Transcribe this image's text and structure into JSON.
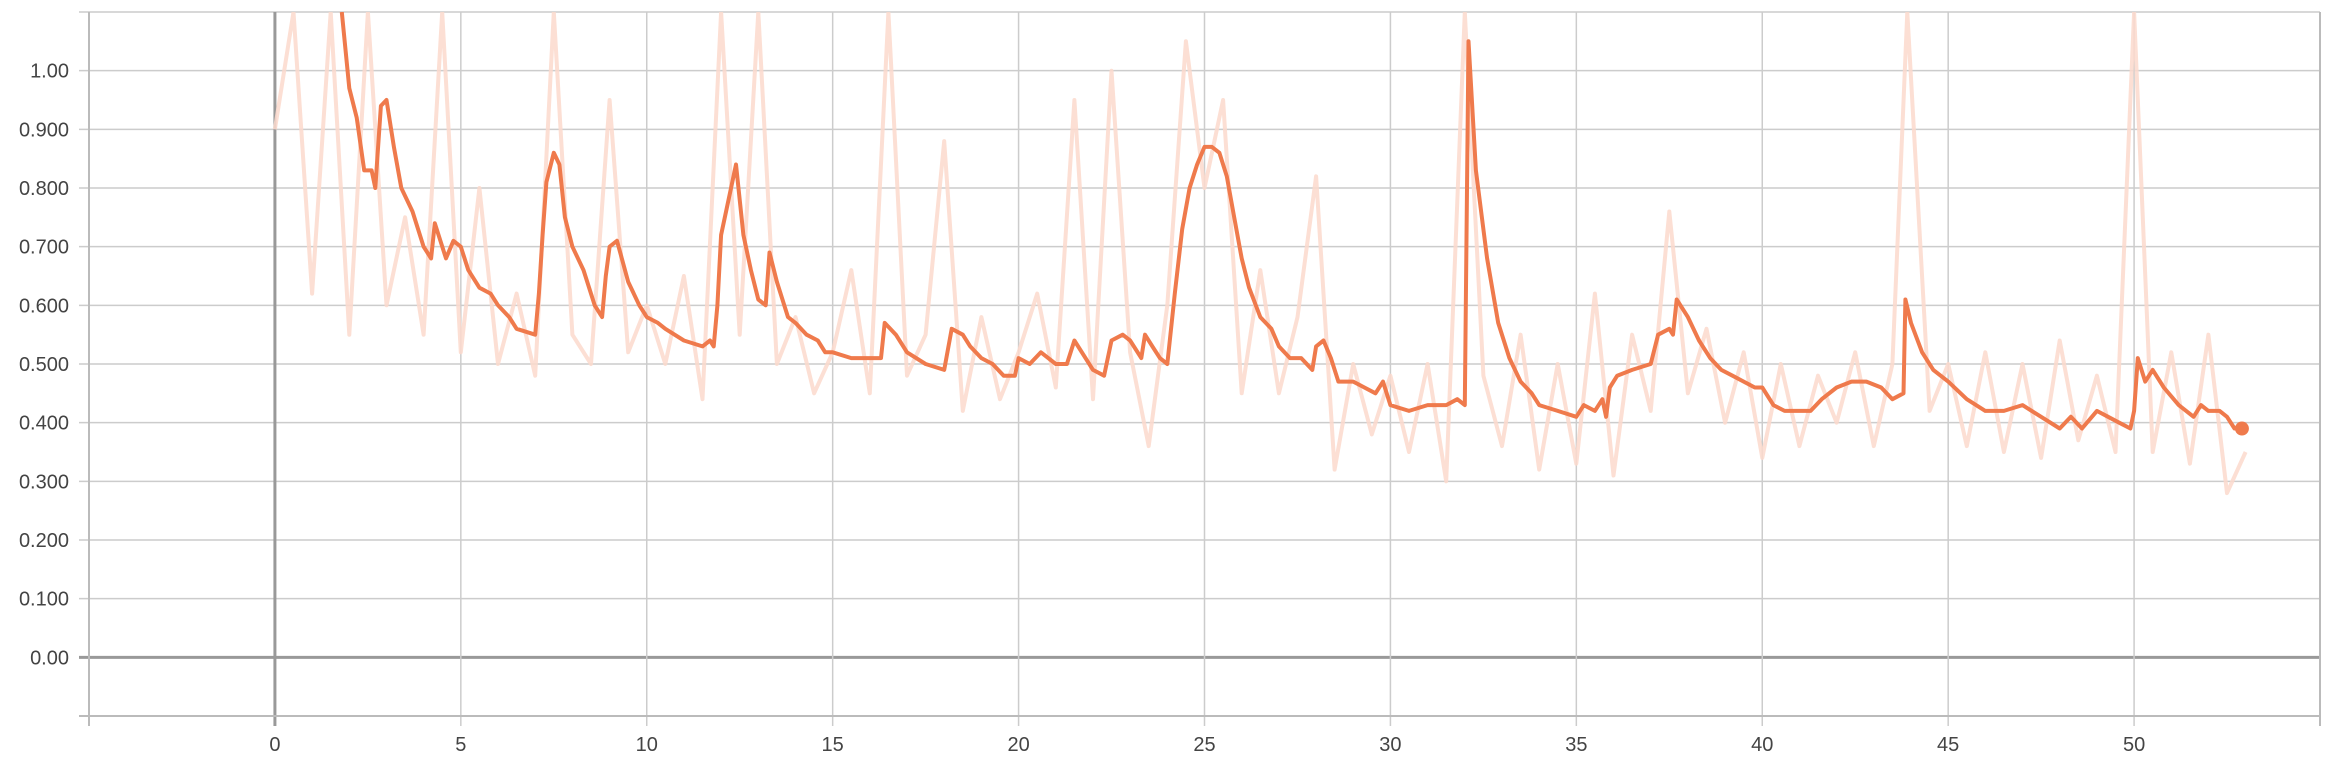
{
  "chart_data": {
    "type": "line",
    "title": "",
    "xlabel": "",
    "ylabel": "",
    "xlim": [
      -5,
      55
    ],
    "ylim": [
      -0.1,
      1.1
    ],
    "grid": true,
    "x_ticks": [
      "0",
      "5",
      "10",
      "15",
      "20",
      "25",
      "30",
      "35",
      "40",
      "45",
      "50"
    ],
    "x_tick_values": [
      0,
      5,
      10,
      15,
      20,
      25,
      30,
      35,
      40,
      45,
      50
    ],
    "y_ticks": [
      "0.00",
      "0.100",
      "0.200",
      "0.300",
      "0.400",
      "0.500",
      "0.600",
      "0.700",
      "0.800",
      "0.900",
      "1.00"
    ],
    "y_tick_values": [
      0,
      0.1,
      0.2,
      0.3,
      0.4,
      0.5,
      0.6,
      0.7,
      0.8,
      0.9,
      1.0
    ],
    "colors": {
      "smoothed": "#ef7a4c",
      "raw": "#fbd9cd",
      "grid": "#cccccc",
      "axis": "#999999"
    },
    "series": [
      {
        "role": "raw",
        "points": [
          [
            0,
            0.9
          ],
          [
            0.5,
            1.1
          ],
          [
            1.0,
            0.62
          ],
          [
            1.5,
            1.1
          ],
          [
            2.0,
            0.55
          ],
          [
            2.5,
            1.1
          ],
          [
            3.0,
            0.6
          ],
          [
            3.5,
            0.75
          ],
          [
            4.0,
            0.55
          ],
          [
            4.5,
            1.1
          ],
          [
            5.0,
            0.52
          ],
          [
            5.5,
            0.8
          ],
          [
            6.0,
            0.5
          ],
          [
            6.5,
            0.62
          ],
          [
            7.0,
            0.48
          ],
          [
            7.5,
            1.1
          ],
          [
            8.0,
            0.55
          ],
          [
            8.5,
            0.5
          ],
          [
            9.0,
            0.95
          ],
          [
            9.5,
            0.52
          ],
          [
            10.0,
            0.6
          ],
          [
            10.5,
            0.5
          ],
          [
            11.0,
            0.65
          ],
          [
            11.5,
            0.44
          ],
          [
            12.0,
            1.1
          ],
          [
            12.5,
            0.55
          ],
          [
            13.0,
            1.1
          ],
          [
            13.5,
            0.5
          ],
          [
            14.0,
            0.58
          ],
          [
            14.5,
            0.45
          ],
          [
            15.0,
            0.52
          ],
          [
            15.5,
            0.66
          ],
          [
            16.0,
            0.45
          ],
          [
            16.5,
            1.1
          ],
          [
            17.0,
            0.48
          ],
          [
            17.5,
            0.55
          ],
          [
            18.0,
            0.88
          ],
          [
            18.5,
            0.42
          ],
          [
            19.0,
            0.58
          ],
          [
            19.5,
            0.44
          ],
          [
            20.0,
            0.52
          ],
          [
            20.5,
            0.62
          ],
          [
            21.0,
            0.46
          ],
          [
            21.5,
            0.95
          ],
          [
            22.0,
            0.44
          ],
          [
            22.5,
            1.0
          ],
          [
            23.0,
            0.52
          ],
          [
            23.5,
            0.36
          ],
          [
            24.0,
            0.6
          ],
          [
            24.5,
            1.05
          ],
          [
            25.0,
            0.8
          ],
          [
            25.5,
            0.95
          ],
          [
            26.0,
            0.45
          ],
          [
            26.5,
            0.66
          ],
          [
            27.0,
            0.45
          ],
          [
            27.5,
            0.58
          ],
          [
            28.0,
            0.82
          ],
          [
            28.5,
            0.32
          ],
          [
            29.0,
            0.5
          ],
          [
            29.5,
            0.38
          ],
          [
            30.0,
            0.48
          ],
          [
            30.5,
            0.35
          ],
          [
            31.0,
            0.5
          ],
          [
            31.5,
            0.3
          ],
          [
            32.0,
            1.1
          ],
          [
            32.5,
            0.48
          ],
          [
            33.0,
            0.36
          ],
          [
            33.5,
            0.55
          ],
          [
            34.0,
            0.32
          ],
          [
            34.5,
            0.5
          ],
          [
            35.0,
            0.33
          ],
          [
            35.5,
            0.62
          ],
          [
            36.0,
            0.31
          ],
          [
            36.5,
            0.55
          ],
          [
            37.0,
            0.42
          ],
          [
            37.5,
            0.76
          ],
          [
            38.0,
            0.45
          ],
          [
            38.5,
            0.56
          ],
          [
            39.0,
            0.4
          ],
          [
            39.5,
            0.52
          ],
          [
            40.0,
            0.34
          ],
          [
            40.5,
            0.5
          ],
          [
            41.0,
            0.36
          ],
          [
            41.5,
            0.48
          ],
          [
            42.0,
            0.4
          ],
          [
            42.5,
            0.52
          ],
          [
            43.0,
            0.36
          ],
          [
            43.5,
            0.5
          ],
          [
            43.9,
            1.1
          ],
          [
            44.5,
            0.42
          ],
          [
            45.0,
            0.5
          ],
          [
            45.5,
            0.36
          ],
          [
            46.0,
            0.52
          ],
          [
            46.5,
            0.35
          ],
          [
            47.0,
            0.5
          ],
          [
            47.5,
            0.34
          ],
          [
            48.0,
            0.54
          ],
          [
            48.5,
            0.37
          ],
          [
            49.0,
            0.48
          ],
          [
            49.5,
            0.35
          ],
          [
            50.0,
            1.1
          ],
          [
            50.5,
            0.35
          ],
          [
            51.0,
            0.52
          ],
          [
            51.5,
            0.33
          ],
          [
            52.0,
            0.55
          ],
          [
            52.5,
            0.28
          ],
          [
            53.0,
            0.35
          ]
        ]
      },
      {
        "role": "smoothed",
        "points": [
          [
            1.8,
            1.1
          ],
          [
            2.0,
            0.97
          ],
          [
            2.2,
            0.92
          ],
          [
            2.4,
            0.83
          ],
          [
            2.6,
            0.83
          ],
          [
            2.7,
            0.8
          ],
          [
            2.85,
            0.94
          ],
          [
            3.0,
            0.95
          ],
          [
            3.2,
            0.87
          ],
          [
            3.4,
            0.8
          ],
          [
            3.7,
            0.76
          ],
          [
            4.0,
            0.7
          ],
          [
            4.2,
            0.68
          ],
          [
            4.3,
            0.74
          ],
          [
            4.6,
            0.68
          ],
          [
            4.8,
            0.71
          ],
          [
            5.0,
            0.7
          ],
          [
            5.2,
            0.66
          ],
          [
            5.5,
            0.63
          ],
          [
            5.8,
            0.62
          ],
          [
            6.0,
            0.6
          ],
          [
            6.3,
            0.58
          ],
          [
            6.5,
            0.56
          ],
          [
            7.0,
            0.55
          ],
          [
            7.1,
            0.62
          ],
          [
            7.2,
            0.72
          ],
          [
            7.3,
            0.81
          ],
          [
            7.5,
            0.86
          ],
          [
            7.65,
            0.84
          ],
          [
            7.8,
            0.75
          ],
          [
            8.0,
            0.7
          ],
          [
            8.3,
            0.66
          ],
          [
            8.6,
            0.6
          ],
          [
            8.8,
            0.58
          ],
          [
            8.9,
            0.65
          ],
          [
            9.0,
            0.7
          ],
          [
            9.2,
            0.71
          ],
          [
            9.5,
            0.64
          ],
          [
            9.8,
            0.6
          ],
          [
            10.0,
            0.58
          ],
          [
            10.3,
            0.57
          ],
          [
            10.5,
            0.56
          ],
          [
            11.0,
            0.54
          ],
          [
            11.5,
            0.53
          ],
          [
            11.7,
            0.54
          ],
          [
            11.8,
            0.53
          ],
          [
            11.9,
            0.6
          ],
          [
            12.0,
            0.72
          ],
          [
            12.3,
            0.81
          ],
          [
            12.4,
            0.84
          ],
          [
            12.6,
            0.72
          ],
          [
            12.8,
            0.66
          ],
          [
            13.0,
            0.61
          ],
          [
            13.2,
            0.6
          ],
          [
            13.3,
            0.69
          ],
          [
            13.5,
            0.64
          ],
          [
            13.8,
            0.58
          ],
          [
            14.0,
            0.57
          ],
          [
            14.3,
            0.55
          ],
          [
            14.6,
            0.54
          ],
          [
            14.8,
            0.52
          ],
          [
            15.0,
            0.52
          ],
          [
            15.5,
            0.51
          ],
          [
            16.0,
            0.51
          ],
          [
            16.3,
            0.51
          ],
          [
            16.4,
            0.57
          ],
          [
            16.7,
            0.55
          ],
          [
            17.0,
            0.52
          ],
          [
            17.5,
            0.5
          ],
          [
            18.0,
            0.49
          ],
          [
            18.2,
            0.56
          ],
          [
            18.5,
            0.55
          ],
          [
            18.7,
            0.53
          ],
          [
            19.0,
            0.51
          ],
          [
            19.3,
            0.5
          ],
          [
            19.6,
            0.48
          ],
          [
            19.9,
            0.48
          ],
          [
            20.0,
            0.51
          ],
          [
            20.3,
            0.5
          ],
          [
            20.6,
            0.52
          ],
          [
            21.0,
            0.5
          ],
          [
            21.3,
            0.5
          ],
          [
            21.5,
            0.54
          ],
          [
            21.8,
            0.51
          ],
          [
            22.0,
            0.49
          ],
          [
            22.3,
            0.48
          ],
          [
            22.5,
            0.54
          ],
          [
            22.8,
            0.55
          ],
          [
            23.0,
            0.54
          ],
          [
            23.3,
            0.51
          ],
          [
            23.4,
            0.55
          ],
          [
            23.6,
            0.53
          ],
          [
            23.8,
            0.51
          ],
          [
            24.0,
            0.5
          ],
          [
            24.2,
            0.62
          ],
          [
            24.4,
            0.73
          ],
          [
            24.6,
            0.8
          ],
          [
            24.8,
            0.84
          ],
          [
            25.0,
            0.87
          ],
          [
            25.2,
            0.87
          ],
          [
            25.4,
            0.86
          ],
          [
            25.6,
            0.82
          ],
          [
            25.8,
            0.75
          ],
          [
            26.0,
            0.68
          ],
          [
            26.2,
            0.63
          ],
          [
            26.5,
            0.58
          ],
          [
            26.8,
            0.56
          ],
          [
            27.0,
            0.53
          ],
          [
            27.3,
            0.51
          ],
          [
            27.6,
            0.51
          ],
          [
            27.9,
            0.49
          ],
          [
            28.0,
            0.53
          ],
          [
            28.2,
            0.54
          ],
          [
            28.4,
            0.51
          ],
          [
            28.6,
            0.47
          ],
          [
            29.0,
            0.47
          ],
          [
            29.3,
            0.46
          ],
          [
            29.6,
            0.45
          ],
          [
            29.8,
            0.47
          ],
          [
            30.0,
            0.43
          ],
          [
            30.5,
            0.42
          ],
          [
            31.0,
            0.43
          ],
          [
            31.5,
            0.43
          ],
          [
            31.8,
            0.44
          ],
          [
            32.0,
            0.43
          ],
          [
            32.1,
            1.05
          ],
          [
            32.3,
            0.83
          ],
          [
            32.6,
            0.68
          ],
          [
            32.9,
            0.57
          ],
          [
            33.2,
            0.51
          ],
          [
            33.5,
            0.47
          ],
          [
            33.8,
            0.45
          ],
          [
            34.0,
            0.43
          ],
          [
            34.5,
            0.42
          ],
          [
            35.0,
            0.41
          ],
          [
            35.2,
            0.43
          ],
          [
            35.5,
            0.42
          ],
          [
            35.7,
            0.44
          ],
          [
            35.8,
            0.41
          ],
          [
            35.9,
            0.46
          ],
          [
            36.1,
            0.48
          ],
          [
            36.5,
            0.49
          ],
          [
            37.0,
            0.5
          ],
          [
            37.2,
            0.55
          ],
          [
            37.5,
            0.56
          ],
          [
            37.6,
            0.55
          ],
          [
            37.7,
            0.61
          ],
          [
            38.0,
            0.58
          ],
          [
            38.3,
            0.54
          ],
          [
            38.6,
            0.51
          ],
          [
            38.9,
            0.49
          ],
          [
            39.2,
            0.48
          ],
          [
            39.5,
            0.47
          ],
          [
            39.8,
            0.46
          ],
          [
            40.0,
            0.46
          ],
          [
            40.3,
            0.43
          ],
          [
            40.6,
            0.42
          ],
          [
            41.0,
            0.42
          ],
          [
            41.3,
            0.42
          ],
          [
            41.6,
            0.44
          ],
          [
            42.0,
            0.46
          ],
          [
            42.4,
            0.47
          ],
          [
            42.8,
            0.47
          ],
          [
            43.2,
            0.46
          ],
          [
            43.5,
            0.44
          ],
          [
            43.8,
            0.45
          ],
          [
            43.85,
            0.61
          ],
          [
            44.0,
            0.57
          ],
          [
            44.3,
            0.52
          ],
          [
            44.6,
            0.49
          ],
          [
            45.0,
            0.47
          ],
          [
            45.5,
            0.44
          ],
          [
            46.0,
            0.42
          ],
          [
            46.5,
            0.42
          ],
          [
            47.0,
            0.43
          ],
          [
            47.5,
            0.41
          ],
          [
            48.0,
            0.39
          ],
          [
            48.3,
            0.41
          ],
          [
            48.6,
            0.39
          ],
          [
            49.0,
            0.42
          ],
          [
            49.3,
            0.41
          ],
          [
            49.6,
            0.4
          ],
          [
            49.9,
            0.39
          ],
          [
            50.0,
            0.42
          ],
          [
            50.1,
            0.51
          ],
          [
            50.3,
            0.47
          ],
          [
            50.5,
            0.49
          ],
          [
            50.8,
            0.46
          ],
          [
            51.2,
            0.43
          ],
          [
            51.6,
            0.41
          ],
          [
            51.8,
            0.43
          ],
          [
            52.0,
            0.42
          ],
          [
            52.3,
            0.42
          ],
          [
            52.5,
            0.41
          ],
          [
            52.7,
            0.39
          ],
          [
            52.9,
            0.39
          ]
        ]
      }
    ],
    "last_point": [
      52.9,
      0.39
    ]
  }
}
